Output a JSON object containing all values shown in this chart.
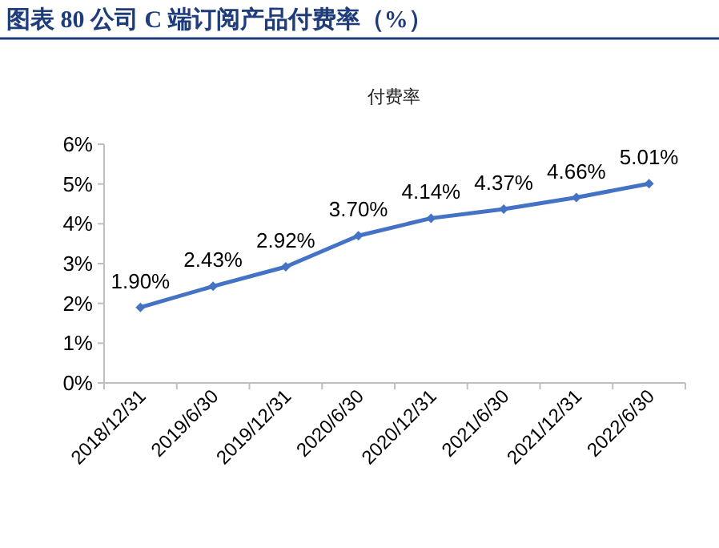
{
  "chart_data": {
    "type": "line",
    "title": "图表 80 公司 C 端订阅产品付费率（%）",
    "subtitle": "付费率",
    "categories": [
      "2018/12/31",
      "2019/6/30",
      "2019/12/31",
      "2020/6/30",
      "2020/12/31",
      "2021/6/30",
      "2021/12/31",
      "2022/6/30"
    ],
    "values": [
      1.9,
      2.43,
      2.92,
      3.7,
      4.14,
      4.37,
      4.66,
      5.01
    ],
    "value_labels": [
      "1.90%",
      "2.43%",
      "2.92%",
      "3.70%",
      "4.14%",
      "4.37%",
      "4.66%",
      "5.01%"
    ],
    "color": "#4472c4",
    "marker": "diamond",
    "line_style": "solid",
    "ylim": [
      0,
      6
    ],
    "yticks": [
      {
        "value": 0,
        "label": "0%"
      },
      {
        "value": 1,
        "label": "1%"
      },
      {
        "value": 2,
        "label": "2%"
      },
      {
        "value": 3,
        "label": "3%"
      },
      {
        "value": 4,
        "label": "4%"
      },
      {
        "value": 5,
        "label": "5%"
      },
      {
        "value": 6,
        "label": "6%"
      }
    ]
  }
}
